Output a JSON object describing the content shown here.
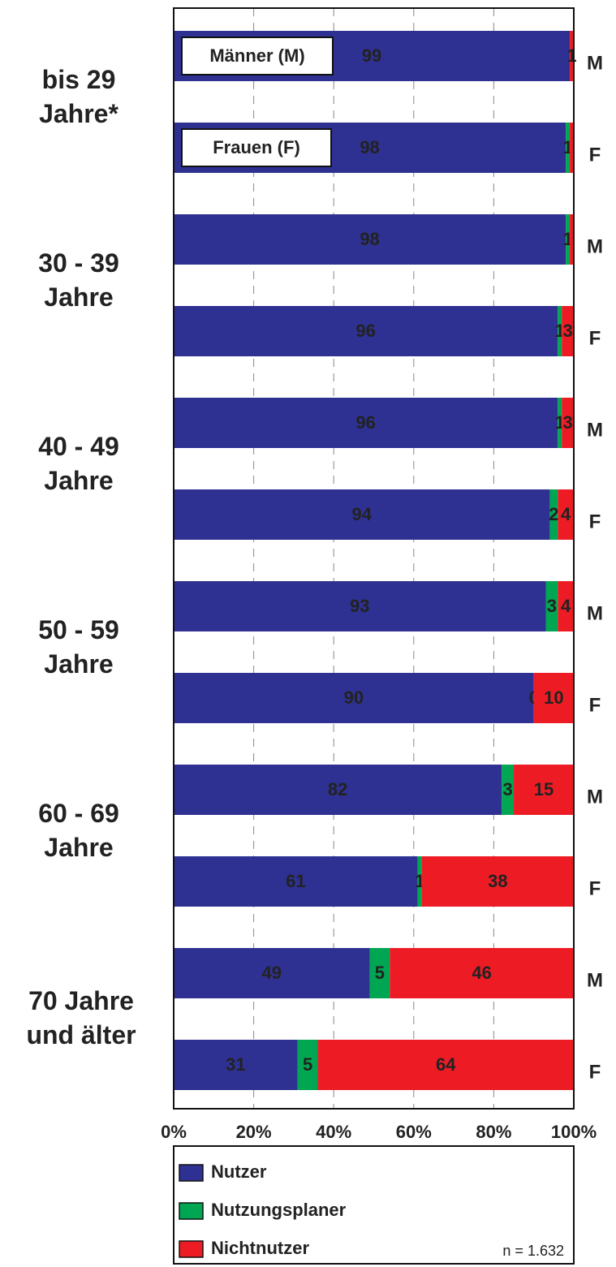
{
  "chart_data": {
    "type": "bar",
    "orientation": "horizontal",
    "stacked": true,
    "categories": [
      "M",
      "F",
      "M",
      "F",
      "M",
      "F",
      "M",
      "F",
      "M",
      "F",
      "M",
      "F"
    ],
    "groups": [
      [
        "bis 29",
        "Jahre*"
      ],
      [
        "30 - 39",
        "Jahre"
      ],
      [
        "40 - 49",
        "Jahre"
      ],
      [
        "50 - 59",
        "Jahre"
      ],
      [
        "60 - 69",
        "Jahre"
      ],
      [
        "70 Jahre",
        "und älter"
      ]
    ],
    "series": [
      {
        "name": "Nutzer",
        "color": "#2e3192",
        "values": [
          99,
          98,
          98,
          96,
          96,
          94,
          93,
          90,
          82,
          61,
          49,
          31
        ],
        "value_labels": [
          "99",
          "98",
          "98",
          "96",
          "96",
          "94",
          "93",
          "90",
          "82",
          "61",
          "49",
          "31"
        ]
      },
      {
        "name": "Nutzungsplaner",
        "color": "#00a651",
        "values": [
          0,
          1,
          1,
          1,
          1,
          2,
          3,
          0,
          3,
          1,
          5,
          5
        ],
        "value_labels": [
          null,
          "1",
          "1",
          "1",
          "1",
          "2",
          "3",
          "0",
          "3",
          "1",
          "5",
          "5"
        ]
      },
      {
        "name": "Nichtnutzer",
        "color": "#ed1c24",
        "values": [
          1,
          1,
          1,
          3,
          3,
          4,
          4,
          10,
          15,
          38,
          46,
          64
        ],
        "value_labels": [
          "1",
          null,
          null,
          "3",
          "3",
          "4",
          "4",
          "10",
          "15",
          "38",
          "46",
          "64"
        ]
      }
    ],
    "xlim": [
      0,
      100
    ],
    "xticks": [
      {
        "value": 0,
        "label": "0%"
      },
      {
        "value": 20,
        "label": "20%"
      },
      {
        "value": 40,
        "label": "40%"
      },
      {
        "value": 60,
        "label": "60%"
      },
      {
        "value": 80,
        "label": "80%"
      },
      {
        "value": 100,
        "label": "100%"
      }
    ],
    "grid": true,
    "annotations": [
      "Männer (M)",
      "Frauen (F)"
    ],
    "note": "n = 1.632"
  }
}
